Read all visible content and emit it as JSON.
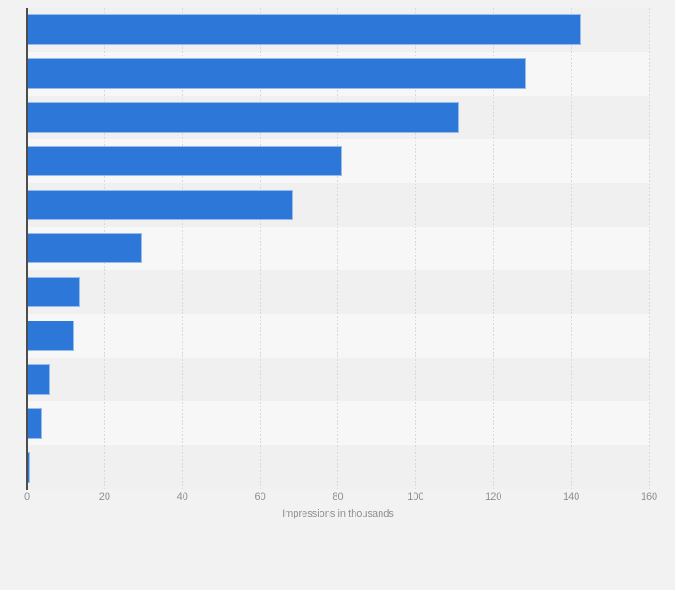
{
  "chart_data": {
    "type": "bar",
    "orientation": "horizontal",
    "title": "",
    "categories": [
      "",
      "",
      "",
      "",
      "",
      "",
      "",
      "",
      "",
      "",
      ""
    ],
    "values": [
      142.4,
      128.5,
      111.2,
      81.0,
      68.3,
      29.8,
      13.5,
      12.3,
      6.0,
      4.0,
      0.7
    ],
    "xlabel": "Impressions in thousands",
    "xlim": [
      0,
      160
    ],
    "xticks": [
      0,
      20,
      40,
      60,
      80,
      100,
      120,
      140,
      160
    ],
    "grid": "vertical-dashed",
    "legend": "none"
  },
  "colors": {
    "background": "#f2f2f2",
    "bar": "#2c77d8",
    "row_odd": "#f0f0f1",
    "row_even": "#f7f7f8",
    "gridline": "#d8d8d8",
    "axis_line": "#4d4d4d",
    "tick_label": "#909090"
  }
}
